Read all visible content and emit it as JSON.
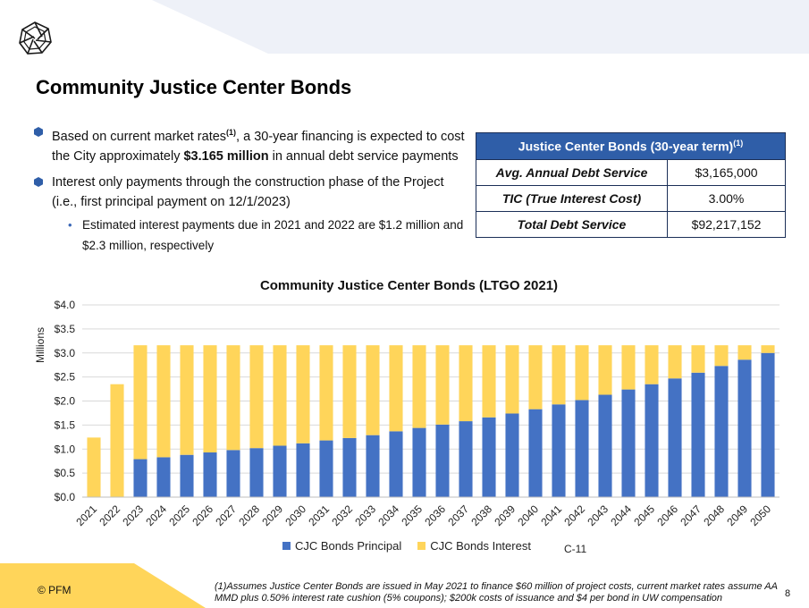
{
  "header": {
    "title": "Community Justice Center Bonds"
  },
  "bullets": [
    {
      "pre": "Based on current market rates",
      "sup": "(1)",
      "mid": ", a 30-year financing is expected to cost the City approximately ",
      "bold": "$3.165 million",
      "post": " in annual debt service payments"
    },
    {
      "text": "Interest only payments through the construction phase of the Project (i.e., first principal payment on 12/1/2023)"
    }
  ],
  "sub_bullet": {
    "text": "Estimated interest payments due in 2021 and 2022 are $1.2 million and $2.3 million, respectively"
  },
  "table": {
    "header": "Justice Center Bonds (30-year term)",
    "header_sup": "(1)",
    "rows": [
      {
        "label": "Avg. Annual Debt Service",
        "value": "$3,165,000"
      },
      {
        "label": "TIC (True Interest Cost)",
        "value": "3.00%"
      },
      {
        "label": "Total Debt Service",
        "value": "$92,217,152"
      }
    ]
  },
  "chart_data": {
    "type": "bar",
    "stacked": true,
    "title": "Community Justice Center Bonds (LTGO 2021)",
    "ylabel": "Millions",
    "xlabel": "",
    "ylim": [
      0,
      4.0
    ],
    "yticks": [
      "$0.0",
      "$0.5",
      "$1.0",
      "$1.5",
      "$2.0",
      "$2.5",
      "$3.0",
      "$3.5",
      "$4.0"
    ],
    "grid": true,
    "legend_position": "bottom",
    "categories": [
      "2021",
      "2022",
      "2023",
      "2024",
      "2025",
      "2026",
      "2027",
      "2028",
      "2029",
      "2030",
      "2031",
      "2032",
      "2033",
      "2034",
      "2035",
      "2036",
      "2037",
      "2038",
      "2039",
      "2040",
      "2041",
      "2042",
      "2043",
      "2044",
      "2045",
      "2046",
      "2047",
      "2048",
      "2049",
      "2050"
    ],
    "series": [
      {
        "name": "CJC Bonds Principal",
        "color": "#4472c4",
        "values": [
          0,
          0,
          0.79,
          0.83,
          0.88,
          0.93,
          0.98,
          1.02,
          1.07,
          1.12,
          1.18,
          1.23,
          1.29,
          1.37,
          1.44,
          1.51,
          1.58,
          1.66,
          1.74,
          1.83,
          1.93,
          2.02,
          2.13,
          2.24,
          2.35,
          2.47,
          2.59,
          2.73,
          2.86,
          3.0
        ]
      },
      {
        "name": "CJC Bonds Interest",
        "color": "#ffd55a",
        "values": [
          1.24,
          2.35,
          2.37,
          2.33,
          2.28,
          2.23,
          2.18,
          2.14,
          2.09,
          2.04,
          1.98,
          1.93,
          1.87,
          1.79,
          1.72,
          1.65,
          1.58,
          1.5,
          1.42,
          1.33,
          1.23,
          1.14,
          1.03,
          0.92,
          0.81,
          0.69,
          0.57,
          0.43,
          0.3,
          0.16
        ]
      }
    ]
  },
  "page_code": "C-11",
  "footer": {
    "copyright": "© PFM",
    "footnote": "(1)Assumes Justice Center Bonds are issued in May 2021 to finance $60 million of project costs, current market rates assume AA MMD plus 0.50% interest rate cushion (5% coupons); $200k costs of issuance and $4 per bond in UW compensation",
    "page_number": "8"
  },
  "colors": {
    "accent_blue": "#2f5ea8",
    "accent_yellow": "#ffd55a",
    "band": "#eef1f8"
  },
  "icons": {
    "logo": "pfm-logo-icon",
    "bullet": "hexagon-bullet-icon"
  }
}
